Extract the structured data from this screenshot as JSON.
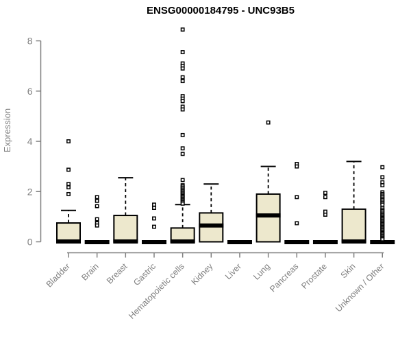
{
  "colors": {
    "background": "#ffffff",
    "title": "#000000",
    "axis": "#7f7f7f",
    "box_fill": "#ede8cd",
    "box_stroke": "#000000",
    "median": "#000000",
    "whisker": "#000000",
    "outlier_stroke": "#000000",
    "outlier_fill": "#ffffff"
  },
  "chart_data": {
    "type": "box",
    "title": "ENSG00000184795 - UNC93B5",
    "xlabel": "",
    "ylabel": "Expression",
    "ylim": [
      0,
      8.5
    ],
    "yticks": [
      0,
      2,
      4,
      6,
      8
    ],
    "grid": false,
    "legend": "none",
    "categories": [
      "Bladder",
      "Brain",
      "Breast",
      "Gastric",
      "Hematopoietic cells",
      "Kidney",
      "Liver",
      "Lung",
      "Pancreas",
      "Prostate",
      "Skin",
      "Unknown / Other"
    ],
    "series": [
      {
        "name": "Bladder",
        "q1": 0,
        "median": 0,
        "q3": 0.75,
        "whisker_low": 0,
        "whisker_high": 1.25,
        "outliers": [
          4.0,
          2.87,
          2.3,
          2.17,
          1.9
        ]
      },
      {
        "name": "Brain",
        "q1": 0,
        "median": 0,
        "q3": 0,
        "whisker_low": 0,
        "whisker_high": 0,
        "outliers": [
          1.78,
          1.63,
          1.42,
          0.9,
          0.74,
          0.65
        ]
      },
      {
        "name": "Breast",
        "q1": 0,
        "median": 0,
        "q3": 1.05,
        "whisker_low": 0,
        "whisker_high": 2.55,
        "outliers": []
      },
      {
        "name": "Gastric",
        "q1": 0,
        "median": 0,
        "q3": 0,
        "whisker_low": 0,
        "whisker_high": 0,
        "outliers": [
          1.48,
          1.35,
          0.93,
          0.6
        ]
      },
      {
        "name": "Hematopoietic cells",
        "q1": 0,
        "median": 0,
        "q3": 0.55,
        "whisker_low": 0,
        "whisker_high": 1.48,
        "outliers": [
          8.45,
          7.55,
          7.1,
          7.0,
          6.9,
          6.55,
          6.4,
          5.8,
          5.7,
          5.6,
          5.38,
          5.27,
          4.25,
          3.72,
          3.5,
          2.46,
          2.25,
          2.2,
          2.14,
          2.08,
          2.02,
          1.97,
          1.92,
          1.87,
          1.82,
          1.77,
          1.72,
          1.67,
          1.62,
          1.57,
          1.52
        ]
      },
      {
        "name": "Kidney",
        "q1": 0,
        "median": 0.65,
        "q3": 1.15,
        "whisker_low": 0,
        "whisker_high": 2.3,
        "outliers": []
      },
      {
        "name": "Liver",
        "q1": 0,
        "median": 0,
        "q3": 0,
        "whisker_low": 0,
        "whisker_high": 0,
        "outliers": []
      },
      {
        "name": "Lung",
        "q1": 0,
        "median": 1.05,
        "q3": 1.9,
        "whisker_low": 0,
        "whisker_high": 3.0,
        "outliers": [
          4.75
        ]
      },
      {
        "name": "Pancreas",
        "q1": 0,
        "median": 0,
        "q3": 0,
        "whisker_low": 0,
        "whisker_high": 0,
        "outliers": [
          3.1,
          3.0,
          1.78,
          0.74
        ]
      },
      {
        "name": "Prostate",
        "q1": 0,
        "median": 0,
        "q3": 0,
        "whisker_low": 0,
        "whisker_high": 0,
        "outliers": [
          1.95,
          1.78,
          1.2,
          1.08
        ]
      },
      {
        "name": "Skin",
        "q1": 0,
        "median": 0,
        "q3": 1.3,
        "whisker_low": 0,
        "whisker_high": 3.2,
        "outliers": []
      },
      {
        "name": "Unknown / Other",
        "q1": 0,
        "median": 0,
        "q3": 0,
        "whisker_low": 0,
        "whisker_high": 0,
        "outliers": [
          2.97,
          2.57,
          2.37,
          2.25,
          1.97,
          1.9,
          1.84,
          1.78,
          1.72,
          1.66,
          1.6,
          1.54,
          1.48,
          1.35,
          1.28,
          1.22,
          1.16,
          1.1,
          1.05,
          1.0,
          0.95,
          0.9,
          0.85,
          0.8,
          0.75,
          0.7,
          0.65,
          0.6,
          0.55,
          0.5,
          0.45,
          0.4,
          0.35,
          0.3,
          0.25,
          0.2,
          0.15,
          0.1
        ]
      }
    ]
  }
}
